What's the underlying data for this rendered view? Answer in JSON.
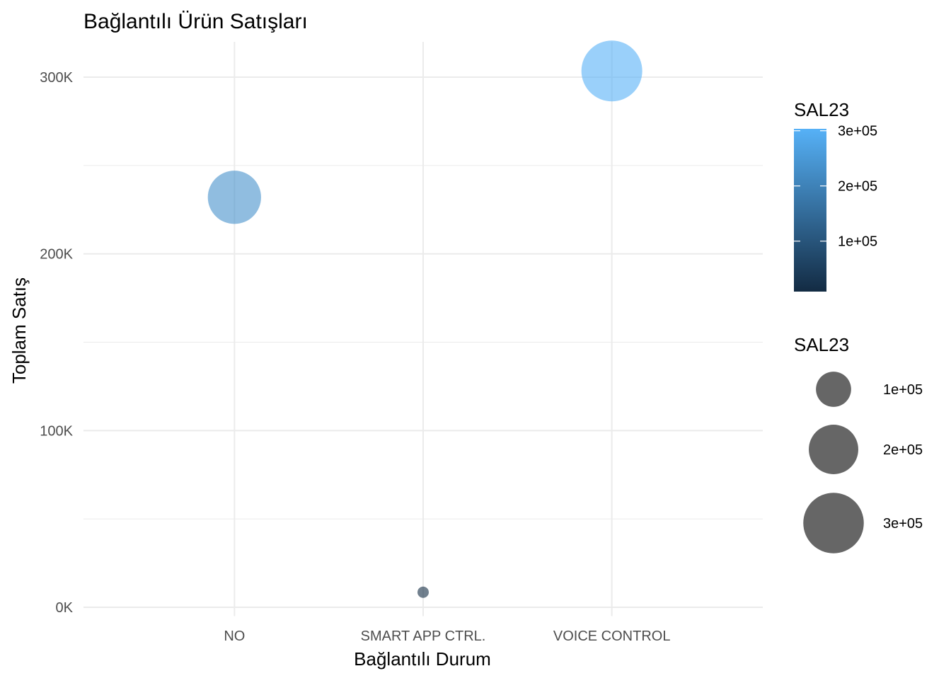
{
  "chart_data": {
    "type": "scatter",
    "title": "Bağlantılı Ürün Satışları",
    "xlabel": "Bağlantılı Durum",
    "ylabel": "Toplam Satış",
    "categories": [
      "NO",
      "SMART APP CTRL.",
      "VOICE CONTROL"
    ],
    "values": [
      232000,
      8500,
      303500
    ],
    "ylim": [
      -5000,
      320000
    ],
    "y_ticks": [
      0,
      100000,
      200000,
      300000
    ],
    "y_tick_labels": [
      "0K",
      "100K",
      "200K",
      "300K"
    ],
    "grid": true,
    "legend_position": "right",
    "colorbar": {
      "title": "SAL23",
      "ticks": [
        100000,
        200000,
        300000
      ],
      "tick_labels": [
        "1e+05",
        "2e+05",
        "3e+05"
      ],
      "range": [
        8500,
        303500
      ],
      "low_color": "#132B43",
      "high_color": "#56B1F7"
    },
    "size_legend": {
      "title": "SAL23",
      "values": [
        100000,
        200000,
        300000
      ],
      "labels": [
        "1e+05",
        "2e+05",
        "3e+05"
      ],
      "color": "#666666"
    },
    "point_alpha": 0.6
  }
}
